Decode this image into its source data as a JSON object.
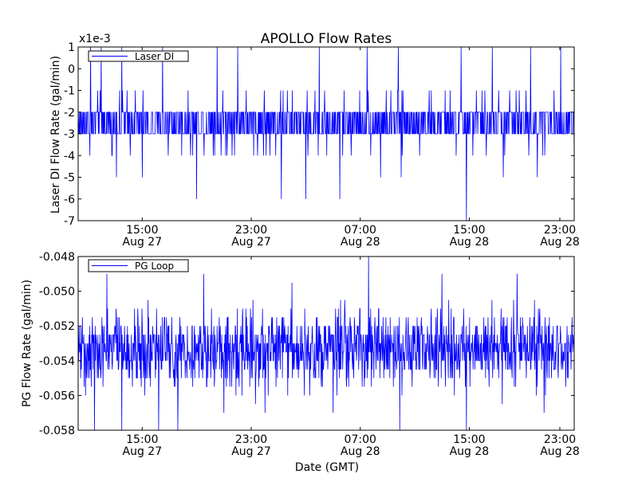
{
  "figure": {
    "title": "APOLLO Flow Rates",
    "xlabel": "Date (GMT)"
  },
  "chart_data": [
    {
      "type": "line",
      "ylabel": "Laser DI Flow Rate (gal/min)",
      "scale_label": "x1e-3",
      "ylim": [
        -7,
        1
      ],
      "yticks": [
        1,
        0,
        -1,
        -2,
        -3,
        -4,
        -5,
        -6,
        -7
      ],
      "ytick_labels": [
        "1",
        "0",
        "-1",
        "-2",
        "-3",
        "-4",
        "-5",
        "-6",
        "-7"
      ],
      "xlim_hours": [
        10.3,
        46.7
      ],
      "xticks": [
        {
          "hours": 15,
          "time": "15:00",
          "date": "Aug 27"
        },
        {
          "hours": 23,
          "time": "23:00",
          "date": "Aug 27"
        },
        {
          "hours": 31,
          "time": "07:00",
          "date": "Aug 28"
        },
        {
          "hours": 39,
          "time": "15:00",
          "date": "Aug 28"
        },
        {
          "hours": 47,
          "time": "23:00",
          "date": "Aug 28"
        }
      ],
      "legend": {
        "label": "Laser DI",
        "position": "upper-left"
      },
      "series": {
        "name": "Laser DI",
        "color": "#0000ff",
        "x_start_hours": 10.3,
        "x_end_hours": 46.7,
        "baseline": -2.5,
        "spread": 0.55,
        "step": 1,
        "spikes": [
          {
            "hours": 11.2,
            "value": 1
          },
          {
            "hours": 12.0,
            "value": 1
          },
          {
            "hours": 13.5,
            "value": 1
          },
          {
            "hours": 16.5,
            "value": 1
          },
          {
            "hours": 20.5,
            "value": 1
          },
          {
            "hours": 22.0,
            "value": 1
          },
          {
            "hours": 28.0,
            "value": 1
          },
          {
            "hours": 31.5,
            "value": 1
          },
          {
            "hours": 33.8,
            "value": 1
          },
          {
            "hours": 38.4,
            "value": 1
          },
          {
            "hours": 40.7,
            "value": 1
          },
          {
            "hours": 43.5,
            "value": 1
          },
          {
            "hours": 45.7,
            "value": 1
          },
          {
            "hours": 19.0,
            "value": -6
          },
          {
            "hours": 25.2,
            "value": -6
          },
          {
            "hours": 27.0,
            "value": -6
          },
          {
            "hours": 29.5,
            "value": -6
          },
          {
            "hours": 38.8,
            "value": -7
          },
          {
            "hours": 15.0,
            "value": -5
          },
          {
            "hours": 13.1,
            "value": -5
          },
          {
            "hours": 32.5,
            "value": -5
          },
          {
            "hours": 34.0,
            "value": -5
          },
          {
            "hours": 41.5,
            "value": -5
          },
          {
            "hours": 44.0,
            "value": -5
          }
        ]
      }
    },
    {
      "type": "line",
      "ylabel": "PG Flow Rate (gal/min)",
      "ylim": [
        -0.058,
        -0.048
      ],
      "yticks": [
        -0.048,
        -0.05,
        -0.052,
        -0.054,
        -0.056,
        -0.058
      ],
      "ytick_labels": [
        "-0.048",
        "-0.050",
        "-0.052",
        "-0.054",
        "-0.056",
        "-0.058"
      ],
      "xlim_hours": [
        10.3,
        46.7
      ],
      "xticks": [
        {
          "hours": 15,
          "time": "15:00",
          "date": "Aug 27"
        },
        {
          "hours": 23,
          "time": "23:00",
          "date": "Aug 27"
        },
        {
          "hours": 31,
          "time": "07:00",
          "date": "Aug 28"
        },
        {
          "hours": 39,
          "time": "15:00",
          "date": "Aug 28"
        },
        {
          "hours": 47,
          "time": "23:00",
          "date": "Aug 28"
        }
      ],
      "legend": {
        "label": "PG Loop",
        "position": "upper-left"
      },
      "series": {
        "name": "PG Loop",
        "color": "#0000ff",
        "x_start_hours": 10.3,
        "x_end_hours": 46.7,
        "baseline": -0.0533,
        "spread": 0.0011,
        "step": 0.0005,
        "spikes": [
          {
            "hours": 31.6,
            "value": -0.048
          },
          {
            "hours": 12.4,
            "value": -0.049
          },
          {
            "hours": 19.5,
            "value": -0.049
          },
          {
            "hours": 37.0,
            "value": -0.049
          },
          {
            "hours": 42.5,
            "value": -0.049
          },
          {
            "hours": 26.0,
            "value": -0.0495
          },
          {
            "hours": 11.5,
            "value": -0.058
          },
          {
            "hours": 13.5,
            "value": -0.058
          },
          {
            "hours": 16.2,
            "value": -0.058
          },
          {
            "hours": 17.6,
            "value": -0.058
          },
          {
            "hours": 33.9,
            "value": -0.058
          },
          {
            "hours": 38.8,
            "value": -0.058
          },
          {
            "hours": 21.0,
            "value": -0.057
          },
          {
            "hours": 24.0,
            "value": -0.057
          },
          {
            "hours": 29.0,
            "value": -0.057
          },
          {
            "hours": 44.5,
            "value": -0.057
          }
        ]
      }
    }
  ]
}
